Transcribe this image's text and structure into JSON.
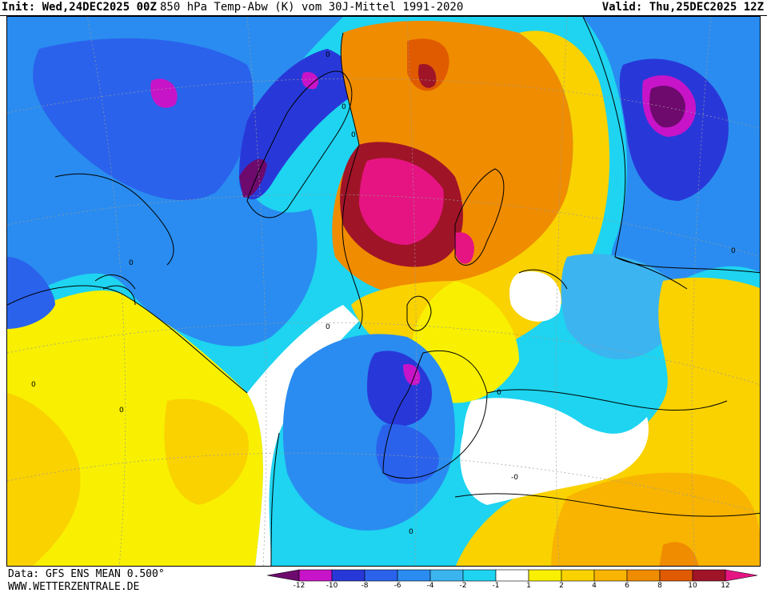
{
  "header": {
    "init_label": "Init:",
    "init_value": "Wed,24DEC2025 00Z",
    "title": "850 hPa Temp-Abw (K) vom 30J-Mittel 1991-2020",
    "valid_label": "Valid:",
    "valid_value": "Thu,25DEC2025 12Z"
  },
  "footer": {
    "data_source": "Data: GFS ENS MEAN 0.500°",
    "website": "WWW.WETTERZENTRALE.DE"
  },
  "legend": {
    "ticks": [
      "-12",
      "-10",
      "-8",
      "-6",
      "-4",
      "-2",
      "-1",
      "1",
      "2",
      "4",
      "6",
      "8",
      "10",
      "12"
    ],
    "colors": [
      "#6e0a6e",
      "#c814c8",
      "#2838d8",
      "#2a62ec",
      "#2a8cf0",
      "#3cb4f0",
      "#1ed4f0",
      "#ffffff",
      "#f8f000",
      "#fad200",
      "#f8b400",
      "#f08c00",
      "#e05a00",
      "#a01428",
      "#e61482"
    ]
  },
  "map": {
    "contour_labels": [
      "0",
      "0",
      "0",
      "0",
      "0",
      "0",
      "0",
      "0",
      "-0",
      "0",
      "0"
    ]
  }
}
